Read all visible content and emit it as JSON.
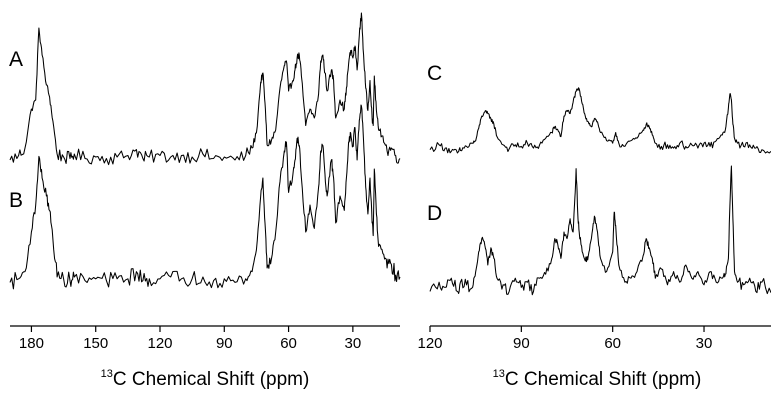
{
  "chart_data": [
    {
      "type": "line",
      "panel_labels": [
        "A",
        "B"
      ],
      "x_ticks": [
        180,
        150,
        120,
        90,
        60,
        30
      ],
      "xlim": [
        190,
        8
      ],
      "x_reversed": true,
      "xlabel_sup": "13",
      "xlabel": "C Chemical Shift (ppm)",
      "series": [
        {
          "label": "A",
          "x": [
            190,
            186,
            183,
            180,
            178,
            176.5,
            175,
            173,
            171.5,
            170,
            168,
            165,
            162,
            160,
            155,
            150,
            145,
            140,
            135,
            131,
            128,
            125,
            120,
            115,
            110,
            105,
            100,
            95,
            90,
            85,
            80,
            77,
            75,
            73,
            72,
            71,
            70,
            68,
            66,
            64,
            62,
            61,
            60,
            58,
            57,
            56,
            55,
            54,
            52,
            50,
            48,
            46,
            45,
            44,
            43,
            42,
            40,
            39,
            38,
            36,
            34,
            33,
            32,
            31,
            30,
            29,
            28,
            27,
            26,
            25,
            24,
            23,
            22,
            21,
            20.5,
            20,
            19,
            18,
            16,
            14,
            12,
            10,
            8
          ],
          "y": [
            0.02,
            0.05,
            0.1,
            0.36,
            0.42,
            0.9,
            0.72,
            0.52,
            0.44,
            0.28,
            0.06,
            0.04,
            0.03,
            0.06,
            0.03,
            0.04,
            0.03,
            0.04,
            0.05,
            0.09,
            0.03,
            0.04,
            0.05,
            0.04,
            0.05,
            0.04,
            0.06,
            0.03,
            0.04,
            0.02,
            0.05,
            0.1,
            0.2,
            0.54,
            0.6,
            0.4,
            0.12,
            0.15,
            0.22,
            0.5,
            0.65,
            0.68,
            0.48,
            0.55,
            0.62,
            0.7,
            0.72,
            0.58,
            0.25,
            0.36,
            0.3,
            0.46,
            0.68,
            0.72,
            0.6,
            0.48,
            0.62,
            0.55,
            0.3,
            0.42,
            0.36,
            0.5,
            0.66,
            0.75,
            0.7,
            0.78,
            0.62,
            0.85,
            1.0,
            0.72,
            0.5,
            0.35,
            0.55,
            0.3,
            0.25,
            0.58,
            0.35,
            0.22,
            0.18,
            0.08,
            0.1,
            0.05,
            0.03
          ]
        },
        {
          "label": "B",
          "x": [
            190,
            186,
            183,
            180,
            178,
            176.5,
            175,
            173,
            171.5,
            170,
            168,
            165,
            162,
            160,
            155,
            150,
            145,
            140,
            135,
            131,
            128,
            125,
            120,
            115,
            110,
            105,
            100,
            95,
            90,
            85,
            80,
            77,
            75,
            73,
            72,
            71,
            70,
            68,
            66,
            64,
            62,
            61,
            60,
            58,
            57,
            56,
            55,
            54,
            52,
            50,
            48,
            46,
            45,
            44,
            43,
            42,
            40,
            39,
            38,
            36,
            34,
            33,
            32,
            31,
            30,
            29,
            28,
            27,
            26,
            25,
            24,
            23,
            22,
            21,
            20.5,
            20,
            19,
            18,
            16,
            14,
            12,
            10,
            8
          ],
          "y": [
            0.02,
            0.04,
            0.08,
            0.3,
            0.45,
            0.72,
            0.6,
            0.5,
            0.42,
            0.26,
            0.05,
            0.04,
            0.03,
            0.05,
            0.03,
            0.04,
            0.03,
            0.04,
            0.04,
            0.08,
            0.03,
            0.04,
            0.04,
            0.05,
            0.04,
            0.04,
            0.05,
            0.03,
            0.04,
            0.02,
            0.04,
            0.08,
            0.2,
            0.5,
            0.6,
            0.35,
            0.1,
            0.15,
            0.3,
            0.58,
            0.75,
            0.8,
            0.52,
            0.62,
            0.7,
            0.82,
            0.78,
            0.6,
            0.3,
            0.45,
            0.32,
            0.55,
            0.75,
            0.78,
            0.62,
            0.5,
            0.7,
            0.6,
            0.35,
            0.5,
            0.42,
            0.6,
            0.8,
            0.85,
            0.78,
            0.88,
            0.7,
            0.92,
            1.0,
            0.8,
            0.55,
            0.4,
            0.6,
            0.35,
            0.28,
            0.65,
            0.4,
            0.22,
            0.18,
            0.1,
            0.12,
            0.06,
            0.05
          ]
        }
      ]
    },
    {
      "type": "line",
      "panel_labels": [
        "C",
        "D"
      ],
      "x_ticks": [
        120,
        90,
        60,
        30
      ],
      "xlim": [
        120,
        8
      ],
      "x_reversed": true,
      "xlabel_sup": "13",
      "xlabel": "C Chemical Shift (ppm)",
      "series": [
        {
          "label": "C",
          "x": [
            120,
            117,
            115,
            113,
            111,
            110,
            108,
            106,
            105,
            104,
            103,
            102,
            101,
            100,
            99,
            98,
            96,
            94,
            92,
            90,
            88,
            86,
            84,
            82,
            80,
            79,
            78,
            77,
            76,
            75,
            74,
            73,
            72,
            71,
            70,
            69,
            68,
            67,
            66,
            65,
            64,
            62,
            60,
            59,
            58,
            56,
            54,
            52,
            50,
            49,
            48,
            47,
            46,
            44,
            42,
            40,
            38,
            36,
            34,
            32,
            30,
            28,
            26,
            24,
            23,
            22,
            21.5,
            21,
            20.5,
            20,
            19,
            17,
            15,
            13,
            11,
            8
          ],
          "y": [
            0.04,
            0.1,
            0.06,
            0.02,
            0.0,
            0.03,
            0.08,
            0.12,
            0.15,
            0.3,
            0.45,
            0.5,
            0.48,
            0.42,
            0.35,
            0.2,
            0.1,
            0.05,
            0.1,
            0.08,
            0.12,
            0.06,
            0.1,
            0.18,
            0.25,
            0.32,
            0.28,
            0.2,
            0.45,
            0.52,
            0.48,
            0.62,
            0.75,
            0.78,
            0.6,
            0.45,
            0.38,
            0.32,
            0.42,
            0.38,
            0.25,
            0.15,
            0.12,
            0.25,
            0.12,
            0.08,
            0.15,
            0.18,
            0.28,
            0.35,
            0.32,
            0.22,
            0.12,
            0.08,
            0.1,
            0.06,
            0.12,
            0.08,
            0.1,
            0.06,
            0.12,
            0.08,
            0.15,
            0.22,
            0.28,
            0.55,
            0.72,
            0.65,
            0.35,
            0.18,
            0.12,
            0.08,
            0.1,
            0.06,
            0.04,
            0.02
          ]
        },
        {
          "label": "D",
          "x": [
            120,
            117,
            115,
            113,
            111,
            110,
            108,
            106,
            105,
            104,
            103,
            102,
            101,
            100,
            99,
            98,
            96,
            94,
            92,
            90,
            88,
            86,
            84,
            82,
            80,
            79,
            78,
            77,
            76,
            75,
            74,
            73,
            72.5,
            72,
            71.5,
            71,
            70,
            69,
            68,
            67,
            66,
            65,
            64,
            62,
            60,
            59.5,
            59,
            58,
            56,
            54,
            52,
            50,
            49,
            48,
            47,
            46,
            44,
            42,
            40,
            38,
            36,
            34,
            32,
            30,
            28,
            26,
            24,
            23,
            22,
            21.5,
            21,
            20.5,
            20,
            19,
            17,
            15,
            13,
            11,
            8
          ],
          "y": [
            0.05,
            0.12,
            0.08,
            0.15,
            0.05,
            0.12,
            0.1,
            0.08,
            0.2,
            0.35,
            0.45,
            0.4,
            0.25,
            0.38,
            0.3,
            0.15,
            0.1,
            0.05,
            0.15,
            0.08,
            0.12,
            0.05,
            0.15,
            0.18,
            0.3,
            0.45,
            0.4,
            0.3,
            0.5,
            0.45,
            0.6,
            0.5,
            0.72,
            0.98,
            0.65,
            0.5,
            0.35,
            0.28,
            0.32,
            0.45,
            0.62,
            0.5,
            0.3,
            0.2,
            0.35,
            0.65,
            0.55,
            0.25,
            0.12,
            0.15,
            0.2,
            0.32,
            0.45,
            0.38,
            0.3,
            0.15,
            0.22,
            0.1,
            0.2,
            0.12,
            0.25,
            0.15,
            0.2,
            0.1,
            0.2,
            0.12,
            0.15,
            0.18,
            0.3,
            0.7,
            1.0,
            0.6,
            0.2,
            0.12,
            0.1,
            0.15,
            0.05,
            0.12,
            0.04
          ]
        }
      ]
    }
  ]
}
